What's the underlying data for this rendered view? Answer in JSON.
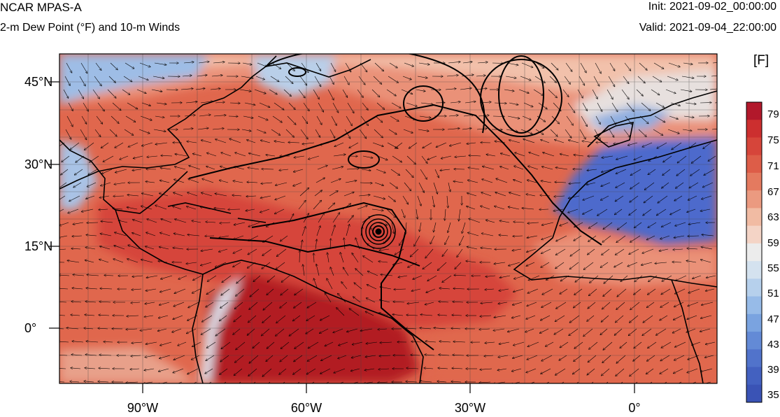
{
  "header": {
    "title": "NCAR MPAS-A",
    "subtitle": "2-m Dew Point (°F) and 10-m Winds",
    "init": "Init: 2021-09-02_00:00:00",
    "valid": "Valid: 2021-09-04_22:00:00"
  },
  "axes": {
    "lat_labels": [
      "45°N",
      "30°N",
      "15°N",
      "0°"
    ],
    "lon_labels": [
      "90°W",
      "60°W",
      "30°W",
      "0°"
    ]
  },
  "colorbar": {
    "unit": "[F]",
    "labels": [
      "79",
      "75",
      "71",
      "67",
      "63",
      "59",
      "55",
      "51",
      "47",
      "43",
      "39",
      "35"
    ],
    "colors": [
      "#b2182b",
      "#cc2f2f",
      "#d6453a",
      "#dd5d48",
      "#e47a5f",
      "#eb9a80",
      "#f1bba3",
      "#f4d4c6",
      "#ececec",
      "#d4e2ef",
      "#b6d0ec",
      "#97bbe8",
      "#7aa3e0",
      "#638ad6",
      "#5173cb",
      "#4361c0",
      "#3a53b5"
    ]
  },
  "map": {
    "colors": {
      "tropical": "#d6453a",
      "warm": "#e0674d",
      "mid": "#ea9178",
      "light": "#f2c1ab",
      "neutral": "#e7e0de",
      "cool": "#9ebde6",
      "dry": "#4d6bcc",
      "humid": "#b21e22"
    }
  }
}
